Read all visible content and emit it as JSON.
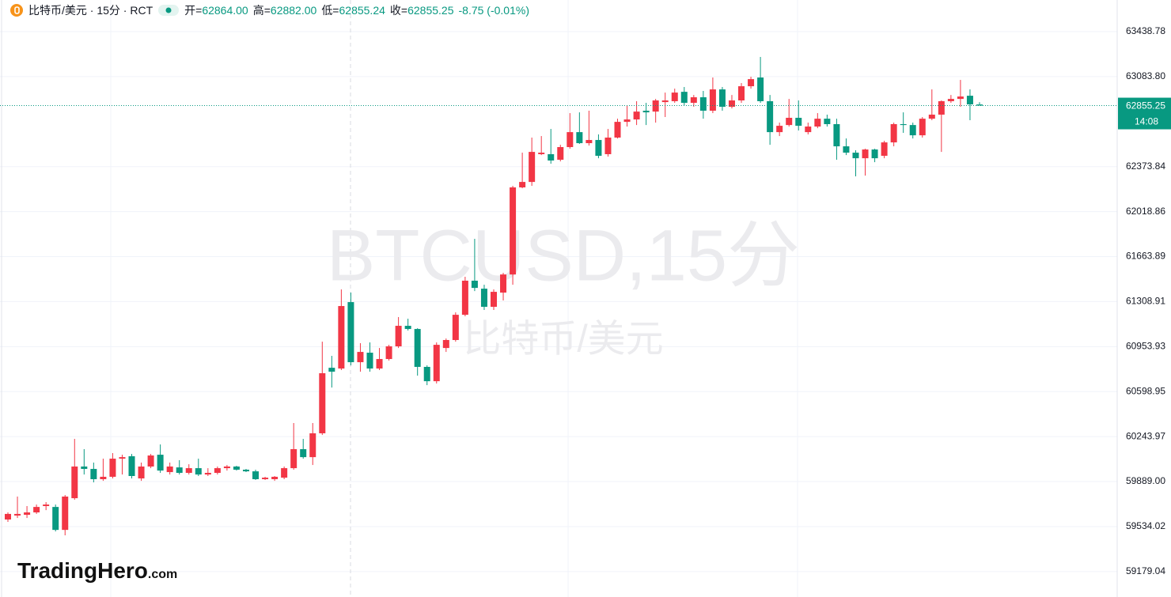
{
  "chart_data": {
    "type": "candlestick",
    "symbol": "比特币/美元 · 15分 · RCT",
    "ohlc_legend": [
      {
        "key": "开=",
        "value": "62864.00"
      },
      {
        "key": "高=",
        "value": "62882.00"
      },
      {
        "key": "低=",
        "value": "62855.24"
      },
      {
        "key": "收=",
        "value": "62855.25"
      }
    ],
    "change": "-8.75 (-0.01%)",
    "watermark": "BTCUSD,15分",
    "watermark_sub": "比特币/美元",
    "logo": "TradingHero",
    "logo_suffix": ".com",
    "last_price": 62855.25,
    "countdown": "14:08",
    "up_color": "#f23645",
    "down_color": "#089981",
    "grid": true,
    "ylim": [
      58978.6,
      63688.3
    ],
    "yticks": [
      63438.78,
      {
        "value": 63083.8,
        "label": "63083.80"
      },
      62373.84,
      62018.86,
      61663.89,
      61308.91,
      60953.93,
      60598.95,
      60243.97,
      {
        "value": 59889,
        "label": "59889.00"
      },
      59534.02,
      59179.04
    ],
    "categories": [
      null,
      null,
      null,
      null,
      null,
      null,
      null,
      null,
      null,
      null,
      null,
      null,
      null,
      null,
      null,
      null,
      null,
      null,
      null,
      null,
      null,
      null,
      null,
      null,
      null,
      null,
      null,
      null,
      null,
      null,
      null,
      null,
      null,
      null,
      null,
      null,
      null,
      null,
      null,
      null,
      null,
      null,
      null,
      null,
      null,
      null,
      null,
      null,
      null,
      null,
      null,
      null,
      null,
      null,
      null,
      null,
      null,
      null,
      null,
      null,
      null,
      null,
      null,
      null,
      null,
      null,
      null,
      null,
      null,
      null,
      null,
      null,
      null,
      null,
      null,
      null,
      null,
      null,
      null,
      null,
      null,
      null,
      null,
      null,
      null,
      null,
      null,
      null,
      null,
      null,
      null,
      null,
      null,
      null,
      null,
      null,
      null,
      null,
      null,
      null,
      null,
      null,
      null
    ],
    "open": [
      59590,
      59621,
      59627,
      59646,
      59696,
      59689,
      59508,
      59758,
      60008,
      59989,
      59908,
      59927,
      60070,
      60089,
      59914,
      60008,
      60101,
      59964,
      60001,
      59958,
      59995,
      59945,
      59958,
      59995,
      60008,
      59983,
      59970,
      59908,
      59908,
      59920,
      59995,
      60145,
      60082,
      60270,
      60787,
      60781,
      61305,
      60831,
      60906,
      60781,
      60856,
      60956,
      61118,
      61093,
      60794,
      60681,
      60943,
      61006,
      61205,
      61474,
      61411,
      61268,
      61380,
      61523,
      62210,
      62253,
      62472,
      62472,
      62428,
      62528,
      62646,
      62559,
      62584,
      62472,
      62603,
      62727,
      62746,
      62815,
      62808,
      62883,
      62890,
      62964,
      62877,
      62921,
      62815,
      62983,
      62846,
      62896,
      63008,
      63077,
      62890,
      62646,
      62702,
      62759,
      62646,
      62690,
      62752,
      62709,
      62534,
      62484,
      62440,
      62509,
      62459,
      62565,
      62709,
      62702,
      62621,
      62752,
      62784,
      62890,
      62908,
      62933,
      62864
    ],
    "high": [
      59646,
      59771,
      59696,
      59708,
      59727,
      59708,
      59783,
      60226,
      60145,
      60039,
      60070,
      60114,
      60101,
      60107,
      60039,
      60107,
      60182,
      60039,
      60058,
      60026,
      60070,
      59995,
      60008,
      60020,
      60014,
      59989,
      59983,
      59927,
      59933,
      60008,
      60351,
      60226,
      60351,
      60993,
      60881,
      61405,
      61380,
      60981,
      60987,
      60943,
      60968,
      61187,
      61174,
      61099,
      60806,
      60987,
      61018,
      61224,
      61505,
      61804,
      61442,
      61405,
      61536,
      62222,
      62484,
      62603,
      62615,
      62671,
      62546,
      62796,
      62802,
      62815,
      62628,
      62671,
      62752,
      62858,
      62890,
      62877,
      62908,
      62958,
      62989,
      63002,
      62939,
      62971,
      63077,
      63002,
      62939,
      63033,
      63083,
      63239,
      62939,
      62721,
      62908,
      62896,
      62721,
      62796,
      62784,
      62752,
      62596,
      62503,
      62515,
      62515,
      62578,
      62721,
      62802,
      62721,
      62765,
      62983,
      62896,
      62939,
      63058,
      62983,
      62882
    ],
    "low": [
      59571,
      59602,
      59602,
      59634,
      59664,
      59496,
      59465,
      59746,
      59945,
      59883,
      59895,
      59914,
      59945,
      59914,
      59895,
      59995,
      59958,
      59945,
      59945,
      59945,
      59933,
      59933,
      59945,
      59976,
      59976,
      59964,
      59902,
      59902,
      59895,
      59908,
      59983,
      60070,
      60020,
      60257,
      60631,
      60769,
      60806,
      60756,
      60756,
      60769,
      60844,
      60943,
      61081,
      60725,
      60650,
      60663,
      60912,
      60993,
      61193,
      61392,
      61243,
      61243,
      61318,
      61442,
      62203,
      62222,
      62465,
      62397,
      62415,
      62515,
      62553,
      62540,
      62440,
      62453,
      62596,
      62690,
      62702,
      62702,
      62721,
      62765,
      62877,
      62858,
      62846,
      62752,
      62796,
      62815,
      62833,
      62877,
      62989,
      62877,
      62546,
      62615,
      62690,
      62659,
      62628,
      62677,
      62690,
      62428,
      62465,
      62297,
      62303,
      62409,
      62440,
      62534,
      62640,
      62596,
      62603,
      62740,
      62490,
      62877,
      62846,
      62740,
      62855.24
    ],
    "close": [
      59634,
      59634,
      59646,
      59689,
      59708,
      59508,
      59771,
      60008,
      59989,
      59908,
      59927,
      60070,
      60082,
      59933,
      60008,
      60095,
      59976,
      60008,
      59958,
      59995,
      59945,
      59958,
      59995,
      60008,
      59983,
      59970,
      59908,
      59920,
      59927,
      59995,
      60145,
      60082,
      60270,
      60744,
      60756,
      61274,
      60831,
      60912,
      60781,
      60856,
      60956,
      61118,
      61093,
      60794,
      60681,
      60968,
      61006,
      61205,
      61474,
      61417,
      61268,
      61386,
      61523,
      62210,
      62253,
      62490,
      62484,
      62422,
      62528,
      62646,
      62559,
      62584,
      62459,
      62603,
      62727,
      62746,
      62808,
      62802,
      62896,
      62896,
      62958,
      62877,
      62921,
      62815,
      62983,
      62846,
      62896,
      63008,
      63064,
      62890,
      62646,
      62696,
      62759,
      62696,
      62690,
      62752,
      62709,
      62534,
      62484,
      62440,
      62509,
      62440,
      62565,
      62709,
      62702,
      62621,
      62752,
      62784,
      62890,
      62908,
      62927,
      62865,
      62855.25
    ]
  }
}
